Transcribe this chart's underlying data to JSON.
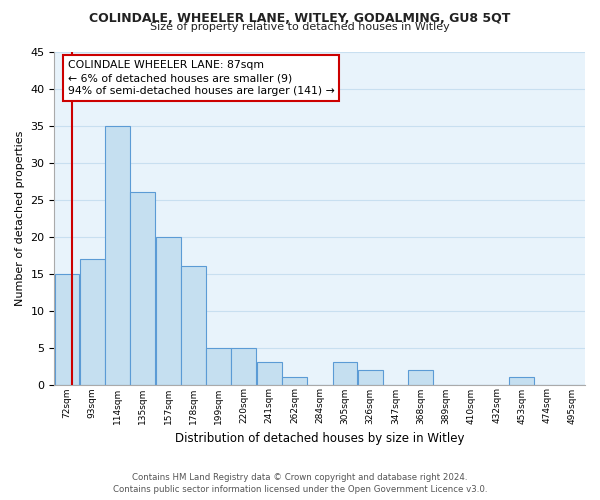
{
  "title": "COLINDALE, WHEELER LANE, WITLEY, GODALMING, GU8 5QT",
  "subtitle": "Size of property relative to detached houses in Witley",
  "xlabel": "Distribution of detached houses by size in Witley",
  "ylabel": "Number of detached properties",
  "bin_labels": [
    "72sqm",
    "93sqm",
    "114sqm",
    "135sqm",
    "157sqm",
    "178sqm",
    "199sqm",
    "220sqm",
    "241sqm",
    "262sqm",
    "284sqm",
    "305sqm",
    "326sqm",
    "347sqm",
    "368sqm",
    "389sqm",
    "410sqm",
    "432sqm",
    "453sqm",
    "474sqm",
    "495sqm"
  ],
  "bar_values": [
    15,
    17,
    35,
    26,
    20,
    16,
    5,
    5,
    3,
    1,
    0,
    3,
    2,
    0,
    2,
    0,
    0,
    0,
    1,
    0,
    0
  ],
  "bar_color": "#c5dff0",
  "bar_edge_color": "#5b9bd5",
  "red_line_color": "#cc0000",
  "ylim": [
    0,
    45
  ],
  "yticks": [
    0,
    5,
    10,
    15,
    20,
    25,
    30,
    35,
    40,
    45
  ],
  "annotation_title": "COLINDALE WHEELER LANE: 87sqm",
  "annotation_line1": "← 6% of detached houses are smaller (9)",
  "annotation_line2": "94% of semi-detached houses are larger (141) →",
  "footer_line1": "Contains HM Land Registry data © Crown copyright and database right 2024.",
  "footer_line2": "Contains public sector information licensed under the Open Government Licence v3.0.",
  "grid_color": "#c8dff0",
  "bg_color": "#e8f3fb"
}
